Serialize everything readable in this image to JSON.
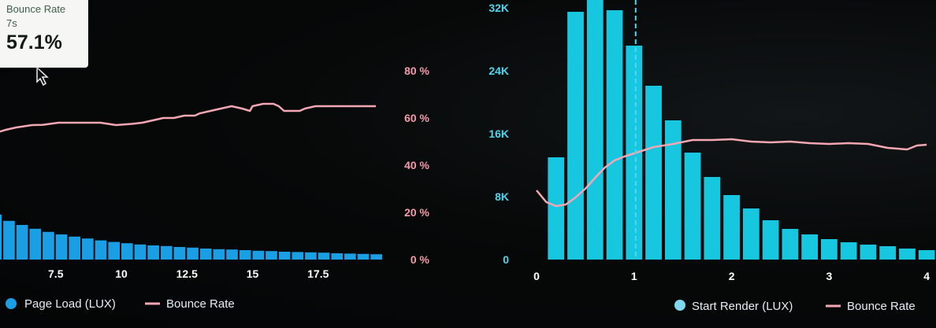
{
  "colors": {
    "left_bar": "#1a9ee4",
    "right_bar": "#17c7e0",
    "bounce_line": "#f2a7b3",
    "pct_tick": "#f49aa9",
    "count_tick": "#4fd6ee",
    "axis_tick": "#ffffff",
    "background": "#050708"
  },
  "tooltip": {
    "metric": "Bounce Rate",
    "bucket": "7s",
    "value": "57.1%"
  },
  "legends": {
    "left": {
      "bars": "Page Load (LUX)",
      "line": "Bounce Rate"
    },
    "right": {
      "bars": "Start Render (LUX)",
      "line": "Bounce Rate"
    }
  },
  "chart_data": [
    {
      "type": "bar",
      "panel": "left",
      "xlim": [
        5.0,
        20.0
      ],
      "x_ticks": [
        "7.5",
        "10",
        "12.5",
        "15",
        "17.5"
      ],
      "x_tick_values": [
        7.5,
        10,
        12.5,
        15,
        17.5
      ],
      "y_right_ticks": [
        "80 %",
        "60 %",
        "40 %",
        "20 %",
        "0 %"
      ],
      "y_right_values": [
        80,
        60,
        40,
        20,
        0
      ],
      "bar_width": 0.5,
      "series": [
        {
          "name": "Page Load (LUX)",
          "kind": "bar",
          "x": [
            5.0,
            5.5,
            6.0,
            6.5,
            7.0,
            7.5,
            8.0,
            8.5,
            9.0,
            9.5,
            10.0,
            10.5,
            11.0,
            11.5,
            12.0,
            12.5,
            13.0,
            13.5,
            14.0,
            14.5,
            15.0,
            15.5,
            16.0,
            16.5,
            17.0,
            17.5,
            18.0,
            18.5,
            19.0,
            19.5
          ],
          "values": [
            14.3,
            12.3,
            11.0,
            9.8,
            8.8,
            8.0,
            7.3,
            6.7,
            6.1,
            5.6,
            5.2,
            4.8,
            4.5,
            4.3,
            4.0,
            3.8,
            3.5,
            3.3,
            3.2,
            3.0,
            2.8,
            2.7,
            2.5,
            2.4,
            2.3,
            2.2,
            2.0,
            1.9,
            1.8,
            1.7
          ]
        },
        {
          "name": "Bounce Rate",
          "kind": "line",
          "x": [
            5.0,
            5.6,
            6.0,
            6.6,
            7.0,
            7.6,
            8.2,
            8.8,
            9.2,
            9.8,
            10.4,
            10.8,
            11.2,
            11.6,
            12.0,
            12.4,
            12.8,
            13.0,
            13.4,
            13.8,
            14.2,
            14.6,
            14.9,
            15.0,
            15.4,
            15.8,
            16.0,
            16.2,
            16.6,
            16.8,
            17.0,
            17.4,
            17.8,
            18.2,
            18.6,
            19.0,
            19.5,
            19.7
          ],
          "values": [
            53,
            55,
            56,
            57,
            57.1,
            58,
            58,
            58,
            58,
            57,
            57.5,
            58,
            59,
            60,
            60,
            61,
            61,
            62,
            63,
            64,
            65,
            64,
            63,
            65,
            66,
            66,
            65,
            63,
            63,
            63,
            64,
            65,
            65,
            65,
            65,
            65,
            65,
            65
          ]
        }
      ]
    },
    {
      "type": "bar",
      "panel": "right",
      "xlim": [
        0,
        4
      ],
      "x_ticks": [
        "0",
        "1",
        "2",
        "3",
        "4"
      ],
      "x_tick_values": [
        0,
        1,
        2,
        3,
        4
      ],
      "y_left_ticks": [
        "32K",
        "24K",
        "16K",
        "8K",
        "0"
      ],
      "y_left_values": [
        32000,
        24000,
        16000,
        8000,
        0
      ],
      "bar_width": 0.2,
      "marker_x": 1.0,
      "series": [
        {
          "name": "Start Render (LUX)",
          "kind": "bar",
          "x": [
            0.2,
            0.4,
            0.6,
            0.8,
            1.0,
            1.2,
            1.4,
            1.6,
            1.8,
            2.0,
            2.2,
            2.4,
            2.6,
            2.8,
            3.0,
            3.2,
            3.4,
            3.6,
            3.8,
            4.0
          ],
          "values": [
            13000,
            31500,
            33500,
            31700,
            27200,
            22100,
            17700,
            13600,
            10500,
            8200,
            6500,
            5000,
            3900,
            3200,
            2600,
            2200,
            1900,
            1700,
            1400,
            1200
          ]
        },
        {
          "name": "Bounce Rate",
          "kind": "line",
          "x": [
            0,
            0.1,
            0.2,
            0.3,
            0.4,
            0.5,
            0.6,
            0.7,
            0.8,
            0.9,
            1.0,
            1.2,
            1.4,
            1.6,
            1.8,
            2.0,
            2.2,
            2.4,
            2.6,
            2.8,
            3.0,
            3.2,
            3.4,
            3.6,
            3.8,
            3.9,
            4.0
          ],
          "values": [
            8800,
            7300,
            6800,
            7000,
            7900,
            9000,
            10400,
            11700,
            12600,
            13100,
            13500,
            14300,
            14700,
            15200,
            15200,
            15300,
            15000,
            14900,
            15000,
            14800,
            14700,
            14800,
            14700,
            14200,
            14000,
            14500,
            14600
          ]
        }
      ]
    }
  ]
}
